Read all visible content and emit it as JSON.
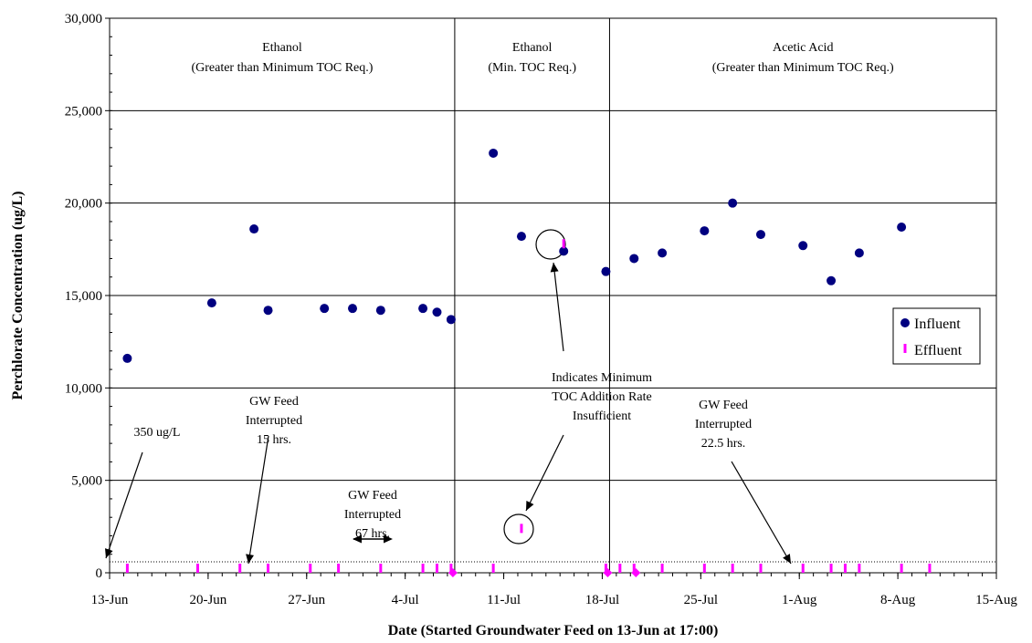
{
  "chart_data": {
    "type": "scatter",
    "xlabel": "Date (Started Groundwater Feed on 13-Jun at 17:00)",
    "ylabel": "Perchlorate Concentration (ug/L)",
    "xlim": [
      "13-Jun",
      "15-Aug"
    ],
    "ylim": [
      0,
      30000
    ],
    "x_tick_labels": [
      "13-Jun",
      "20-Jun",
      "27-Jun",
      "4-Jul",
      "11-Jul",
      "18-Jul",
      "25-Jul",
      "1-Aug",
      "8-Aug",
      "15-Aug"
    ],
    "y_tick_labels": [
      "0",
      "5,000",
      "10,000",
      "15,000",
      "20,000",
      "25,000",
      "30,000"
    ],
    "grid": "horizontal",
    "legend_position": "right",
    "phase_boundaries": [
      "7-Jul",
      "18-Jul"
    ],
    "phases": [
      {
        "name": "Ethanol",
        "detail": "(Greater than Minimum TOC Req.)"
      },
      {
        "name": "Ethanol",
        "detail": "(Min. TOC Req.)"
      },
      {
        "name": "Acetic Acid",
        "detail": "(Greater than Minimum TOC Req.)"
      }
    ],
    "series": [
      {
        "name": "Influent",
        "marker": "circle",
        "color": "#000080",
        "points": [
          {
            "x": "14-Jun",
            "y": 11600
          },
          {
            "x": "20-Jun",
            "y": 14600
          },
          {
            "x": "23-Jun",
            "y": 18600
          },
          {
            "x": "24-Jun",
            "y": 14200
          },
          {
            "x": "28-Jun",
            "y": 14300
          },
          {
            "x": "30-Jun",
            "y": 14300
          },
          {
            "x": "2-Jul",
            "y": 14200
          },
          {
            "x": "5-Jul",
            "y": 14300
          },
          {
            "x": "6-Jul",
            "y": 14100
          },
          {
            "x": "7-Jul",
            "y": 13700
          },
          {
            "x": "10-Jul",
            "y": 22700
          },
          {
            "x": "12-Jul",
            "y": 18200
          },
          {
            "x": "15-Jul",
            "y": 17400
          },
          {
            "x": "18-Jul",
            "y": 16300
          },
          {
            "x": "20-Jul",
            "y": 17000
          },
          {
            "x": "22-Jul",
            "y": 17300
          },
          {
            "x": "25-Jul",
            "y": 18500
          },
          {
            "x": "27-Jul",
            "y": 20000
          },
          {
            "x": "29-Jul",
            "y": 18300
          },
          {
            "x": "1-Aug",
            "y": 17700
          },
          {
            "x": "3-Aug",
            "y": 15800
          },
          {
            "x": "5-Aug",
            "y": 17300
          },
          {
            "x": "8-Aug",
            "y": 18700
          }
        ]
      },
      {
        "name": "Effluent",
        "marker": "bar",
        "color": "#FF00FF",
        "points": [
          {
            "x": "14-Jun",
            "y": 0
          },
          {
            "x": "19-Jun",
            "y": 0
          },
          {
            "x": "22-Jun",
            "y": 0
          },
          {
            "x": "24-Jun",
            "y": 0
          },
          {
            "x": "27-Jun",
            "y": 0
          },
          {
            "x": "29-Jun",
            "y": 0
          },
          {
            "x": "2-Jul",
            "y": 0
          },
          {
            "x": "5-Jul",
            "y": 100
          },
          {
            "x": "6-Jul",
            "y": 100
          },
          {
            "x": "7-Jul",
            "y": 50
          },
          {
            "x": "10-Jul",
            "y": 0
          },
          {
            "x": "12-Jul",
            "y": 2400
          },
          {
            "x": "15-Jul",
            "y": 17800
          },
          {
            "x": "18-Jul",
            "y": 50
          },
          {
            "x": "19-Jul",
            "y": 0
          },
          {
            "x": "20-Jul",
            "y": 0
          },
          {
            "x": "22-Jul",
            "y": 0
          },
          {
            "x": "25-Jul",
            "y": 0
          },
          {
            "x": "27-Jul",
            "y": 0
          },
          {
            "x": "29-Jul",
            "y": 0
          },
          {
            "x": "1-Aug",
            "y": 0
          },
          {
            "x": "3-Aug",
            "y": 0
          },
          {
            "x": "4-Aug",
            "y": 0
          },
          {
            "x": "5-Aug",
            "y": 0
          },
          {
            "x": "8-Aug",
            "y": 0
          },
          {
            "x": "10-Aug",
            "y": 0
          }
        ]
      }
    ],
    "annotations": [
      {
        "lines": [
          "350 ug/L"
        ]
      },
      {
        "lines": [
          "GW Feed",
          "Interrupted",
          "15 hrs."
        ]
      },
      {
        "lines": [
          "GW Feed",
          "Interrupted",
          "67 hrs."
        ]
      },
      {
        "lines": [
          "Indicates Minimum",
          "TOC Addition Rate",
          "Insufficient"
        ]
      },
      {
        "lines": [
          "GW Feed",
          "Interrupted",
          "22.5 hrs."
        ]
      }
    ],
    "colors": {
      "influent": "#000080",
      "effluent": "#FF00FF",
      "gridline": "#000000"
    }
  }
}
